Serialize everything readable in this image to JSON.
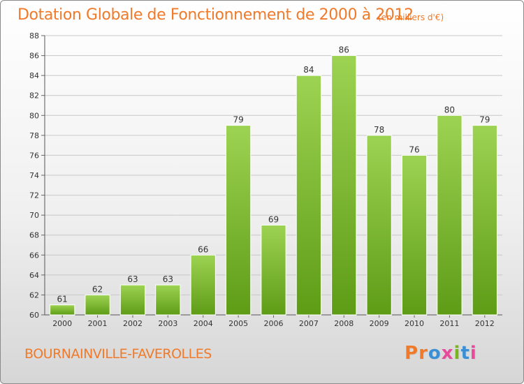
{
  "header": {
    "title": "Dotation Globale de Fonctionnement de 2000 à 2012",
    "unit": "(en milliers d'€)"
  },
  "footer": {
    "commune": "BOURNAINVILLE-FAVEROLLES",
    "logo": "Proxiti",
    "logo_colors": [
      "#f07a2a",
      "#f07a2a",
      "#3a8fd6",
      "#e84b9b",
      "#7ab41e",
      "#3a8fd6",
      "#e84b9b"
    ]
  },
  "colors": {
    "accent": "#f07a2a",
    "bar_top": "#9dd352",
    "bar_bottom": "#5e9c16",
    "grid": "#c8c8c8"
  },
  "chart_data": {
    "type": "bar",
    "title": "Dotation Globale de Fonctionnement de 2000 à 2012",
    "subtitle": "(en milliers d'€)",
    "xlabel": "",
    "ylabel": "",
    "categories": [
      "2000",
      "2001",
      "2002",
      "2003",
      "2004",
      "2005",
      "2006",
      "2007",
      "2008",
      "2009",
      "2010",
      "2011",
      "2012"
    ],
    "values": [
      61,
      62,
      63,
      63,
      66,
      79,
      69,
      84,
      86,
      78,
      76,
      80,
      79
    ],
    "ylim": [
      60,
      88
    ],
    "yticks": [
      60,
      62,
      64,
      66,
      68,
      70,
      72,
      74,
      76,
      78,
      80,
      82,
      84,
      86,
      88
    ],
    "grid": true,
    "data_labels": true
  }
}
